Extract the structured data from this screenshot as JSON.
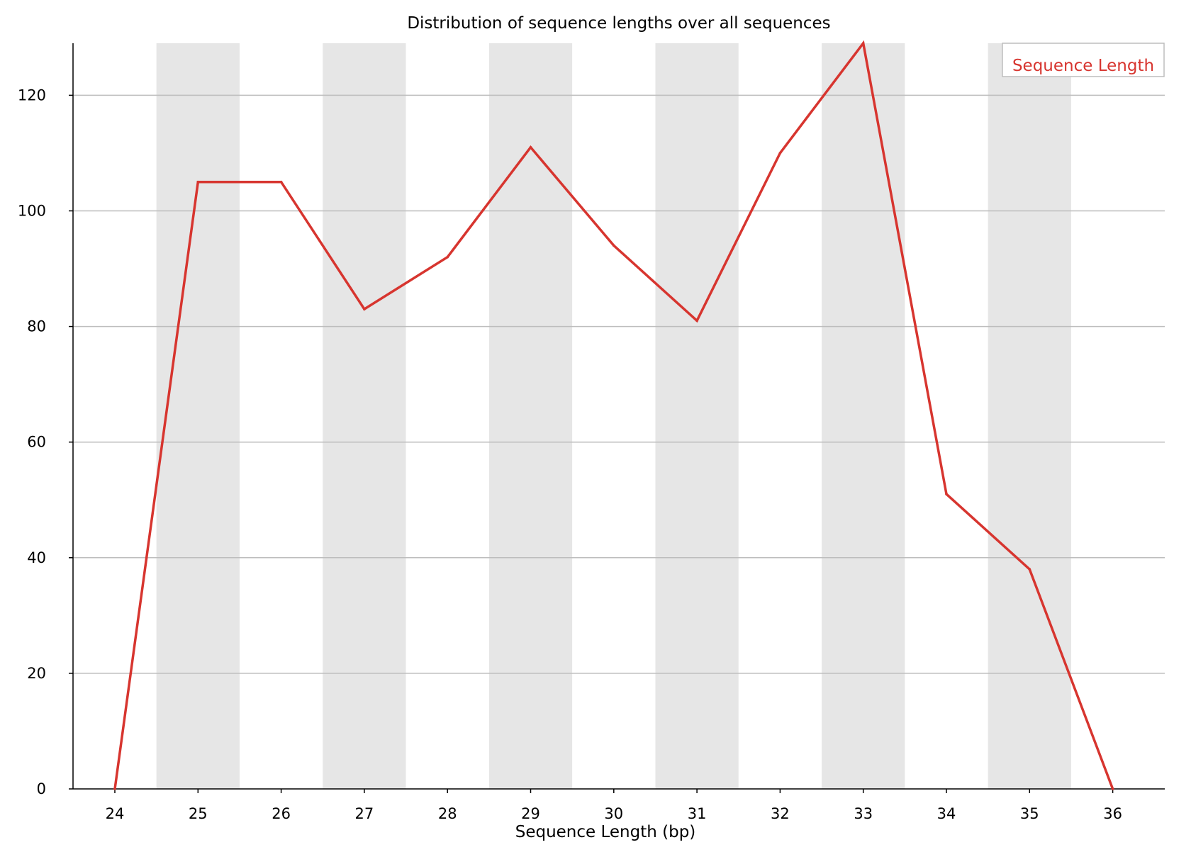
{
  "chart_data": {
    "type": "line",
    "title": "Distribution of sequence lengths over all sequences",
    "xlabel": "Sequence Length (bp)",
    "ylabel": "",
    "categories": [
      "24",
      "25",
      "26",
      "27",
      "28",
      "29",
      "30",
      "31",
      "32",
      "33",
      "34",
      "35",
      "36"
    ],
    "y_ticks": [
      "0",
      "20",
      "40",
      "60",
      "80",
      "100",
      "120"
    ],
    "ylim": [
      0,
      129
    ],
    "series": [
      {
        "name": "Sequence Length",
        "color": "#d7352f",
        "values": [
          0,
          105,
          105,
          83,
          92,
          111,
          94,
          81,
          110,
          129,
          51,
          38,
          0
        ]
      }
    ],
    "legend_position": "top-right",
    "grid": true,
    "alternating_bands": true,
    "band_color": "#e6e6e6",
    "grid_color": "#bdbdbd"
  }
}
